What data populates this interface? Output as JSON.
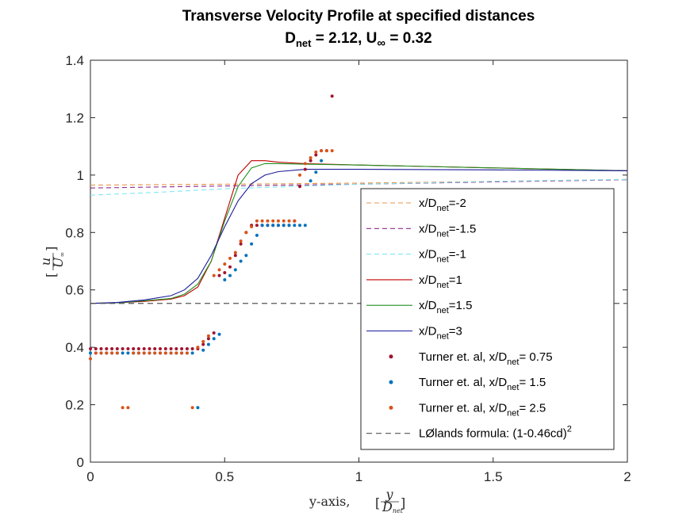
{
  "chart_data": {
    "type": "line",
    "title": "Transverse Velocity Profile at specified distances",
    "subtitle_prefix": "D",
    "subtitle_prefix_sub": "net",
    "subtitle_mid": " = 2.12, U",
    "subtitle_mid_sub": "∞",
    "subtitle_suffix": " = 0.32",
    "xlabel_text": "y-axis, ",
    "xlabel_frac_num": "y",
    "xlabel_frac_den": "D",
    "xlabel_frac_den_sub": "net",
    "ylabel_frac_num": "u",
    "ylabel_frac_den": "U",
    "ylabel_frac_den_sub": "∞",
    "xlim": [
      0,
      2
    ],
    "ylim": [
      0,
      1.4
    ],
    "xticks": [
      0,
      0.5,
      1,
      1.5,
      2
    ],
    "xtick_labels": [
      "0",
      "0.5",
      "1",
      "1.5",
      "2"
    ],
    "yticks": [
      0,
      0.2,
      0.4,
      0.6,
      0.8,
      1,
      1.2,
      1.4
    ],
    "ytick_labels": [
      "0",
      "0.2",
      "0.4",
      "0.6",
      "0.8",
      "1",
      "1.2",
      "1.4"
    ],
    "grid": false,
    "legend_placement": "lower-right",
    "series": [
      {
        "name": "x/D",
        "name_sub": "net",
        "name_suffix": "=-2",
        "style": "dashed",
        "color": "#E8954A",
        "x": [
          0,
          0.5,
          1,
          1.5,
          2
        ],
        "y": [
          0.965,
          0.968,
          0.972,
          0.978,
          0.985
        ]
      },
      {
        "name": "x/D",
        "name_sub": "net",
        "name_suffix": "=-1.5",
        "style": "dashed",
        "color": "#8E2B8E",
        "x": [
          0,
          0.5,
          1,
          1.5,
          2
        ],
        "y": [
          0.955,
          0.962,
          0.968,
          0.976,
          0.984
        ]
      },
      {
        "name": "x/D",
        "name_sub": "net",
        "name_suffix": "=-1",
        "style": "dashed",
        "color": "#7FE7F2",
        "x": [
          0,
          0.25,
          0.5,
          0.75,
          1,
          1.5,
          2
        ],
        "y": [
          0.93,
          0.94,
          0.952,
          0.96,
          0.968,
          0.978,
          0.985
        ]
      },
      {
        "name": "x/D",
        "name_sub": "net",
        "name_suffix": "=1",
        "style": "solid",
        "color": "#C00000",
        "x": [
          0,
          0.1,
          0.2,
          0.3,
          0.35,
          0.4,
          0.45,
          0.5,
          0.55,
          0.6,
          0.65,
          0.7,
          0.8,
          1,
          1.5,
          2
        ],
        "y": [
          0.553,
          0.555,
          0.56,
          0.568,
          0.58,
          0.61,
          0.7,
          0.85,
          1.0,
          1.05,
          1.05,
          1.045,
          1.04,
          1.035,
          1.025,
          1.015
        ]
      },
      {
        "name": "x/D",
        "name_sub": "net",
        "name_suffix": "=1.5",
        "style": "solid",
        "color": "#1F8F1F",
        "x": [
          0,
          0.1,
          0.2,
          0.3,
          0.35,
          0.4,
          0.45,
          0.5,
          0.55,
          0.6,
          0.65,
          0.7,
          0.8,
          1,
          1.5,
          2
        ],
        "y": [
          0.553,
          0.555,
          0.562,
          0.57,
          0.585,
          0.62,
          0.7,
          0.84,
          0.96,
          1.025,
          1.04,
          1.04,
          1.038,
          1.035,
          1.025,
          1.015
        ]
      },
      {
        "name": "x/D",
        "name_sub": "net",
        "name_suffix": "=3",
        "style": "solid",
        "color": "#1A1A9A",
        "x": [
          0,
          0.1,
          0.2,
          0.3,
          0.35,
          0.4,
          0.45,
          0.5,
          0.55,
          0.6,
          0.65,
          0.7,
          0.8,
          1,
          1.5,
          2
        ],
        "y": [
          0.553,
          0.556,
          0.565,
          0.58,
          0.6,
          0.64,
          0.72,
          0.82,
          0.91,
          0.97,
          1.0,
          1.012,
          1.02,
          1.02,
          1.018,
          1.015
        ]
      }
    ],
    "scatter_series": [
      {
        "name": "Turner et. al, x/D",
        "name_sub": "net",
        "name_suffix": "= 0.75",
        "color": "#A2142F",
        "x": [
          0,
          0.02,
          0.04,
          0.06,
          0.08,
          0.1,
          0.12,
          0.14,
          0.16,
          0.18,
          0.2,
          0.22,
          0.24,
          0.26,
          0.28,
          0.3,
          0.32,
          0.34,
          0.36,
          0.38,
          0.4,
          0.42,
          0.44,
          0.46,
          0.48,
          0.5,
          0.52,
          0.54,
          0.56,
          0.58,
          0.6,
          0.62,
          0.64,
          0.66,
          0.68,
          0.7,
          0.72,
          0.74,
          0.76,
          0.78,
          0.8,
          0.82,
          0.84,
          0.86,
          0.88,
          0.9
        ],
        "y": [
          0.395,
          0.395,
          0.395,
          0.395,
          0.395,
          0.395,
          0.395,
          0.395,
          0.395,
          0.395,
          0.395,
          0.395,
          0.395,
          0.395,
          0.395,
          0.395,
          0.395,
          0.395,
          0.395,
          0.395,
          0.395,
          0.41,
          0.43,
          0.45,
          0.65,
          0.66,
          0.68,
          0.72,
          0.76,
          0.8,
          0.825,
          0.825,
          0.825,
          0.825,
          0.825,
          0.825,
          0.825,
          0.825,
          0.84,
          0.96,
          1.02,
          1.05,
          1.07,
          1.085,
          1.085,
          1.275
        ]
      },
      {
        "name": "Turner et. al, x/D",
        "name_sub": "net",
        "name_suffix": "= 1.5",
        "color": "#0072BD",
        "x": [
          0,
          0.02,
          0.04,
          0.06,
          0.08,
          0.1,
          0.12,
          0.14,
          0.16,
          0.18,
          0.2,
          0.22,
          0.24,
          0.26,
          0.28,
          0.3,
          0.32,
          0.34,
          0.36,
          0.38,
          0.4,
          0.42,
          0.44,
          0.46,
          0.48,
          0.5,
          0.52,
          0.54,
          0.56,
          0.58,
          0.6,
          0.62,
          0.64,
          0.66,
          0.68,
          0.7,
          0.72,
          0.74,
          0.76,
          0.78,
          0.8,
          0.82,
          0.84,
          0.86
        ],
        "y": [
          0.38,
          0.38,
          0.38,
          0.38,
          0.38,
          0.38,
          0.38,
          0.38,
          0.38,
          0.38,
          0.38,
          0.38,
          0.38,
          0.38,
          0.38,
          0.38,
          0.38,
          0.38,
          0.38,
          0.38,
          0.19,
          0.39,
          0.41,
          0.43,
          0.445,
          0.635,
          0.65,
          0.67,
          0.7,
          0.72,
          0.76,
          0.79,
          0.825,
          0.825,
          0.825,
          0.825,
          0.825,
          0.825,
          0.825,
          0.825,
          0.825,
          0.98,
          1.01,
          1.05
        ]
      },
      {
        "name": "Turner et. al, x/D",
        "name_sub": "net",
        "name_suffix": "= 2.5",
        "color": "#D95319",
        "x": [
          0,
          0.02,
          0.04,
          0.06,
          0.08,
          0.1,
          0.12,
          0.14,
          0.16,
          0.18,
          0.2,
          0.22,
          0.24,
          0.26,
          0.28,
          0.3,
          0.32,
          0.34,
          0.36,
          0.38,
          0.4,
          0.42,
          0.44,
          0.46,
          0.48,
          0.5,
          0.52,
          0.54,
          0.56,
          0.58,
          0.6,
          0.62,
          0.64,
          0.66,
          0.68,
          0.7,
          0.72,
          0.74,
          0.76,
          0.78,
          0.8,
          0.82,
          0.84,
          0.86,
          0.88,
          0.9
        ],
        "y": [
          0.36,
          0.38,
          0.38,
          0.38,
          0.38,
          0.38,
          0.19,
          0.19,
          0.38,
          0.38,
          0.38,
          0.38,
          0.38,
          0.38,
          0.38,
          0.38,
          0.38,
          0.38,
          0.38,
          0.19,
          0.4,
          0.42,
          0.44,
          0.65,
          0.67,
          0.69,
          0.71,
          0.73,
          0.77,
          0.8,
          0.82,
          0.84,
          0.84,
          0.84,
          0.84,
          0.84,
          0.84,
          0.84,
          0.84,
          1.0,
          1.04,
          1.06,
          1.08,
          1.085,
          1.085,
          1.085
        ]
      }
    ],
    "reference_line": {
      "name": "Ølands formula: (1-0.46cd)",
      "name_sup": "2",
      "prefix": "L",
      "y": 0.553,
      "style": "dashed",
      "color": "#555555"
    }
  }
}
